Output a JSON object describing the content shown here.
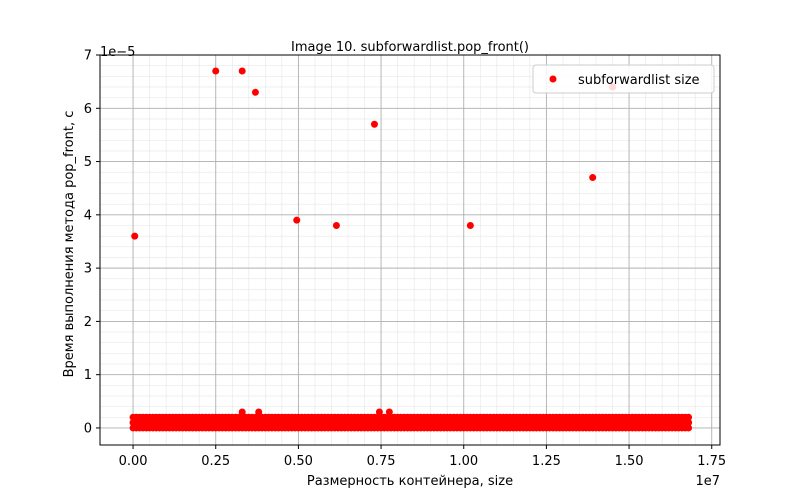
{
  "chart_data": {
    "type": "scatter",
    "title": "Image 10. subforwardlist.pop_front()",
    "xlabel": "Размерность контейнера, size",
    "ylabel": "Время выполнения метода pop_front, с",
    "x_offset_label": "1e7",
    "y_offset_label": "1e−5",
    "xlim": [
      -1000000,
      17750000
    ],
    "ylim": [
      -3.2e-06,
      7e-05
    ],
    "x_ticks": [
      0,
      2500000,
      5000000,
      7500000,
      10000000,
      12500000,
      15000000,
      17500000
    ],
    "x_tick_labels": [
      "0.00",
      "0.25",
      "0.50",
      "0.75",
      "1.00",
      "1.25",
      "1.50",
      "1.75"
    ],
    "y_ticks": [
      0,
      1e-05,
      2e-05,
      3e-05,
      4e-05,
      5e-05,
      6e-05,
      7e-05
    ],
    "y_tick_labels": [
      "0",
      "1",
      "2",
      "3",
      "4",
      "5",
      "6",
      "7"
    ],
    "grid": true,
    "minor_grid": true,
    "legend_position": "top-right",
    "series": [
      {
        "name": "subforwardlist size",
        "color": "#ff0000",
        "x": [
          50000,
          2500000,
          3300000,
          3700000,
          4950000,
          6150000,
          7300000,
          10200000,
          13900000,
          14500000,
          3300000,
          3800000,
          7450000,
          7750000
        ],
        "y": [
          3.6e-05,
          6.7e-05,
          6.7e-05,
          6.3e-05,
          3.9e-05,
          3.8e-05,
          5.7e-05,
          3.8e-05,
          4.7e-05,
          6.4e-05,
          3e-06,
          3e-06,
          3e-06,
          3e-06
        ]
      }
    ],
    "baseline_band": {
      "x_range": [
        0,
        16800000
      ],
      "step": 100000,
      "y_values": [
        0,
        1e-06,
        2e-06
      ]
    }
  }
}
